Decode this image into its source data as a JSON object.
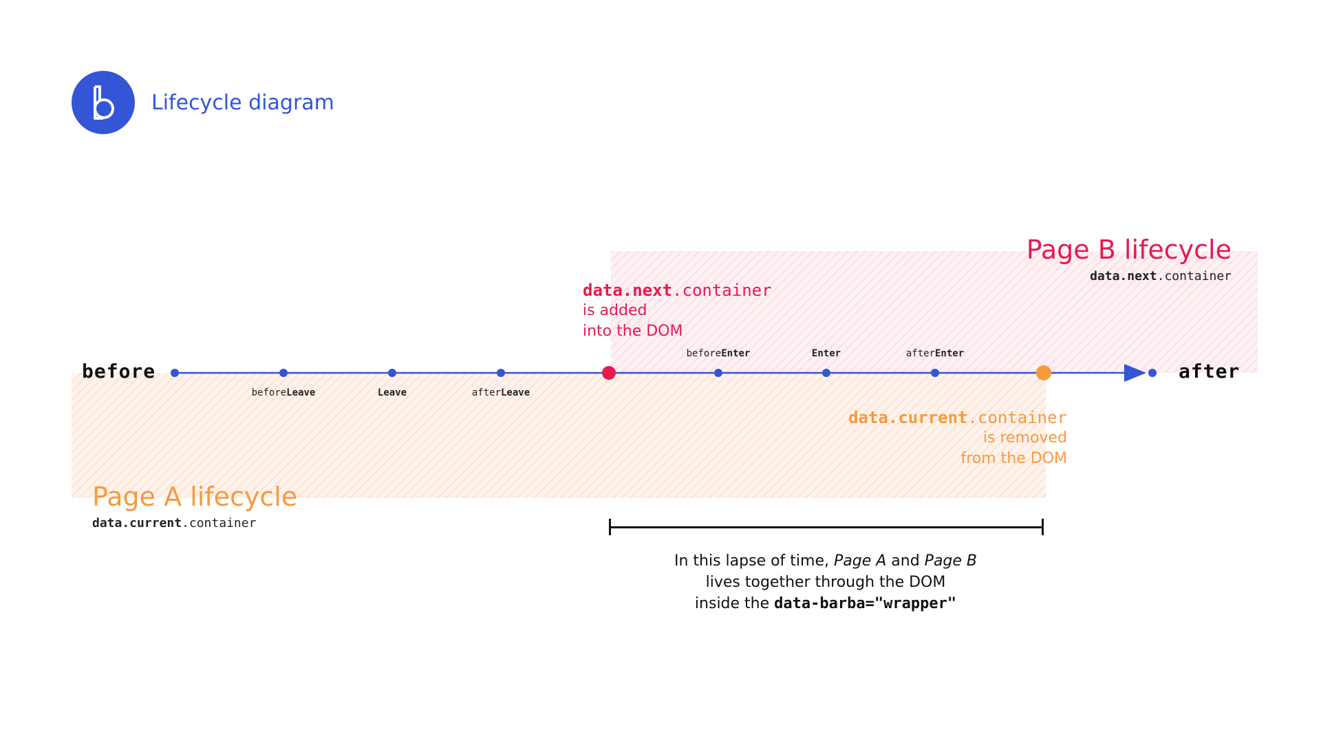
{
  "header": {
    "logo_icon": "barba-logo-icon",
    "title": "Lifecycle diagram",
    "accent_color": "#3355d6"
  },
  "timeline": {
    "start_label": "before",
    "end_label": "after",
    "hooks": [
      {
        "prefix": "before",
        "bold": "Leave"
      },
      {
        "prefix": "",
        "bold": "Leave"
      },
      {
        "prefix": "after",
        "bold": "Leave"
      },
      {
        "prefix": "before",
        "bold": "Enter"
      },
      {
        "prefix": "",
        "bold": "Enter"
      },
      {
        "prefix": "after",
        "bold": "Enter"
      }
    ],
    "line_color": "#3355d6"
  },
  "page_b": {
    "title": "Page B lifecycle",
    "container_bold": "data.next",
    "container_rest": ".container",
    "color": "#e8194e"
  },
  "page_a": {
    "title": "Page A lifecycle",
    "container_bold": "data.current",
    "container_rest": ".container",
    "color": "#f59a3f"
  },
  "event_added": {
    "code_bold": "data.next",
    "code_rest": ".container",
    "line1": "is added",
    "line2": "into the DOM"
  },
  "event_removed": {
    "code_bold": "data.current",
    "code_rest": ".container",
    "line1": "is removed",
    "line2": "from the DOM"
  },
  "caption": {
    "line1_a": "In this lapse of time, ",
    "line1_b": "Page A",
    "line1_c": " and ",
    "line1_d": "Page B",
    "line2": "lives together through the DOM",
    "line3_a": "inside the ",
    "line3_code": "data-barba=\"wrapper\""
  }
}
